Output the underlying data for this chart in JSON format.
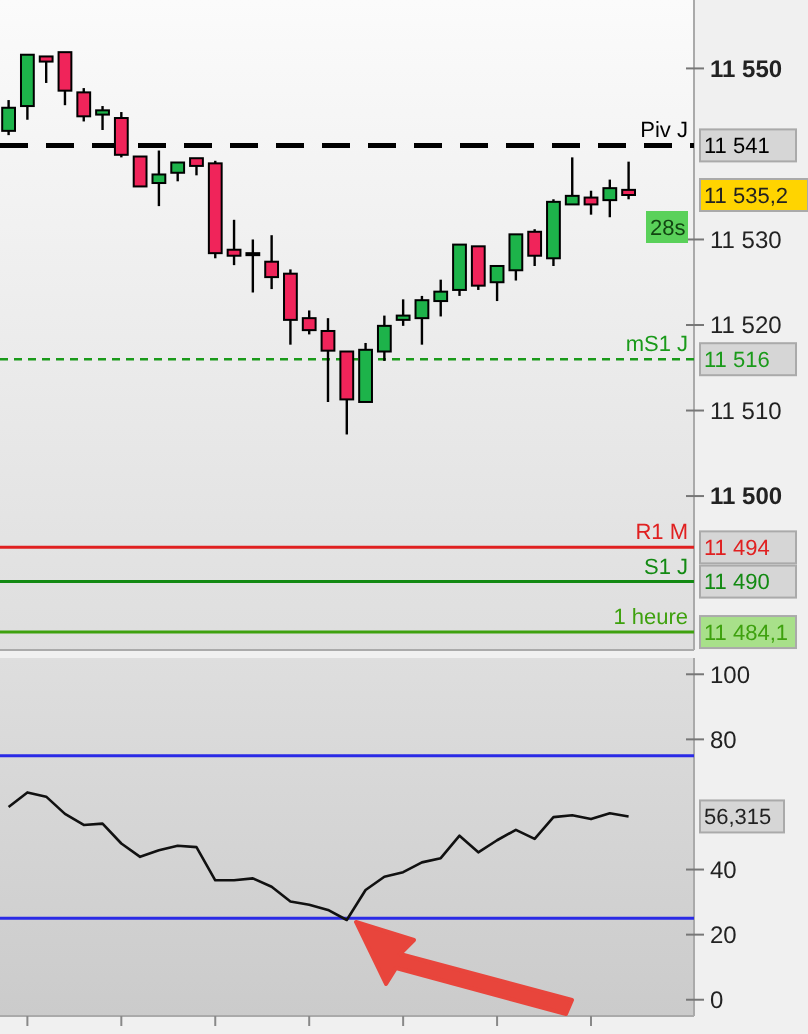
{
  "chart_data": [
    {
      "type": "candlestick",
      "categories": [
        null,
        null,
        null,
        null,
        null,
        null,
        null,
        null,
        null,
        null,
        null,
        null,
        null,
        null,
        null,
        null,
        null,
        null,
        null,
        null,
        null,
        null,
        null,
        null,
        null,
        null,
        null,
        null,
        null,
        null,
        null,
        null,
        null,
        null
      ],
      "ohlc": [
        [
          11542.7,
          11546.3,
          11542.2,
          11545.4
        ],
        [
          11545.6,
          11551.6,
          11544.0,
          11551.6
        ],
        [
          11551.4,
          11551.4,
          11548.3,
          11550.8
        ],
        [
          11551.9,
          11551.9,
          11545.7,
          11547.4
        ],
        [
          11547.2,
          11547.7,
          11543.8,
          11544.4
        ],
        [
          11544.6,
          11545.6,
          11542.8,
          11545.1
        ],
        [
          11544.2,
          11544.9,
          11539.6,
          11539.9
        ],
        [
          11539.7,
          11539.7,
          11536.2,
          11536.2
        ],
        [
          11536.6,
          11540.4,
          11533.9,
          11537.6
        ],
        [
          11537.8,
          11539.0,
          11536.8,
          11539.0
        ],
        [
          11539.5,
          11539.5,
          11537.5,
          11538.6
        ],
        [
          11538.9,
          11539.2,
          11527.8,
          11528.4
        ],
        [
          11528.8,
          11532.3,
          11527.0,
          11528.1
        ],
        [
          11528.4,
          11530.0,
          11523.8,
          11528.4
        ],
        [
          11527.4,
          11530.5,
          11524.2,
          11525.6
        ],
        [
          11526.0,
          11526.5,
          11517.7,
          11520.6
        ],
        [
          11520.8,
          11521.7,
          11518.9,
          11519.4
        ],
        [
          11519.3,
          11520.8,
          11511.0,
          11517.0
        ],
        [
          11516.9,
          11516.9,
          11507.2,
          11511.3
        ],
        [
          11511.0,
          11517.9,
          11511.0,
          11517.1
        ],
        [
          11516.9,
          11521.1,
          11515.8,
          11519.9
        ],
        [
          11520.6,
          11523.0,
          11519.9,
          11521.1
        ],
        [
          11520.8,
          11523.4,
          11517.7,
          11522.9
        ],
        [
          11522.8,
          11525.3,
          11521.0,
          11523.9
        ],
        [
          11524.1,
          11529.4,
          11523.4,
          11529.4
        ],
        [
          11529.2,
          11529.2,
          11524.1,
          11524.6
        ],
        [
          11525.0,
          11526.9,
          11522.8,
          11526.9
        ],
        [
          11526.4,
          11530.6,
          11525.2,
          11530.6
        ],
        [
          11530.9,
          11531.2,
          11526.9,
          11528.1
        ],
        [
          11527.8,
          11534.7,
          11526.9,
          11534.4
        ],
        [
          11534.1,
          11539.6,
          11534.1,
          11535.1
        ],
        [
          11534.9,
          11535.7,
          11532.9,
          11534.1
        ],
        [
          11534.6,
          11537.0,
          11532.6,
          11536.0
        ],
        [
          11535.8,
          11539.1,
          11534.7,
          11535.2
        ]
      ],
      "ylim": [
        11482,
        11558
      ],
      "yticks": [
        11500,
        11510,
        11520,
        11530,
        11550
      ],
      "tick_labels": "y",
      "ref_lines": [
        {
          "axis": "y",
          "value": 11541,
          "label": "Piv J",
          "color": "#000000",
          "line_style": "dashed"
        },
        {
          "axis": "y",
          "value": 11516,
          "label": "mS1 J",
          "color": "#1a9a1a",
          "line_style": "dotted"
        },
        {
          "axis": "y",
          "value": 11494,
          "label": "R1 M",
          "color": "#e02020",
          "line_style": "solid"
        },
        {
          "axis": "y",
          "value": 11490,
          "label": "S1 J",
          "color": "#138a13",
          "line_style": "solid"
        },
        {
          "axis": "y",
          "value": 11484.1,
          "label": "1 heure",
          "color": "#3ea10e",
          "line_style": "solid"
        }
      ],
      "annotations": [
        "11 541",
        "11 516",
        "11 494",
        "11 490",
        "11 484,1",
        "11 535,2",
        "28s"
      ]
    },
    {
      "type": "line",
      "categories": [
        null,
        null,
        null,
        null,
        null,
        null,
        null,
        null,
        null,
        null,
        null,
        null,
        null,
        null,
        null,
        null,
        null,
        null,
        null,
        null,
        null,
        null,
        null,
        null,
        null,
        null,
        null,
        null,
        null,
        null,
        null,
        null,
        null,
        null
      ],
      "series": [
        {
          "color": "#111111",
          "values": [
            59.2,
            63.7,
            62.4,
            57.1,
            53.7,
            54.1,
            48.0,
            43.9,
            45.9,
            47.3,
            46.9,
            36.7,
            36.7,
            37.3,
            34.7,
            30.2,
            29.2,
            27.6,
            24.5,
            33.7,
            37.8,
            39.2,
            42.2,
            43.5,
            50.4,
            45.3,
            49.0,
            52.2,
            49.4,
            56.1,
            56.7,
            55.5,
            57.3,
            56.315
          ]
        }
      ],
      "ylim": [
        -5,
        105
      ],
      "yticks": [
        0,
        20,
        40,
        80,
        100
      ],
      "tick_labels": "y",
      "marker": "none",
      "line_style": "solid",
      "annotations": [
        "56,315"
      ],
      "ref_lines": [
        {
          "axis": "y",
          "value": 75,
          "color": "#2a2ae6"
        },
        {
          "axis": "y",
          "value": 25,
          "color": "#2a2ae6"
        }
      ]
    }
  ]
}
